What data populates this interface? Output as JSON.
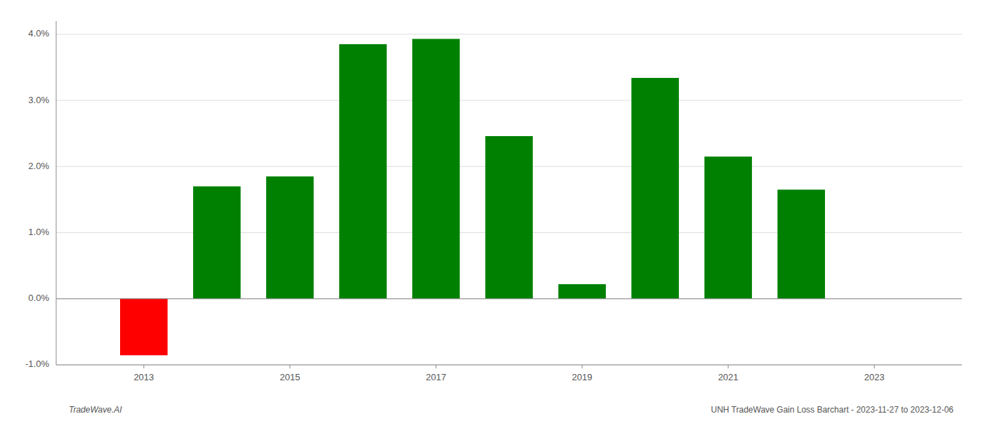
{
  "chart_data": {
    "type": "bar",
    "x": [
      2013,
      2014,
      2015,
      2016,
      2017,
      2018,
      2019,
      2020,
      2021,
      2022
    ],
    "values": [
      -0.00855,
      0.017,
      0.0185,
      0.0385,
      0.0393,
      0.0246,
      0.0022,
      0.0334,
      0.0215,
      0.0165
    ],
    "colors": [
      "#ff0000",
      "#008000",
      "#008000",
      "#008000",
      "#008000",
      "#008000",
      "#008000",
      "#008000",
      "#008000",
      "#008000"
    ],
    "xlim": [
      2011.8,
      2024.2
    ],
    "xticks": [
      2013,
      2015,
      2017,
      2019,
      2021,
      2023
    ],
    "ylim": [
      -0.01,
      0.042
    ],
    "yticks": [
      {
        "value": -0.01,
        "label": "-1.0%"
      },
      {
        "value": 0.0,
        "label": "0.0%"
      },
      {
        "value": 0.01,
        "label": "1.0%"
      },
      {
        "value": 0.02,
        "label": "2.0%"
      },
      {
        "value": 0.03,
        "label": "3.0%"
      },
      {
        "value": 0.04,
        "label": "4.0%"
      }
    ],
    "grid": true,
    "annotations": [
      "TradeWave.AI",
      "UNH TradeWave Gain Loss Barchart - 2023-11-27 to 2023-12-06"
    ]
  }
}
